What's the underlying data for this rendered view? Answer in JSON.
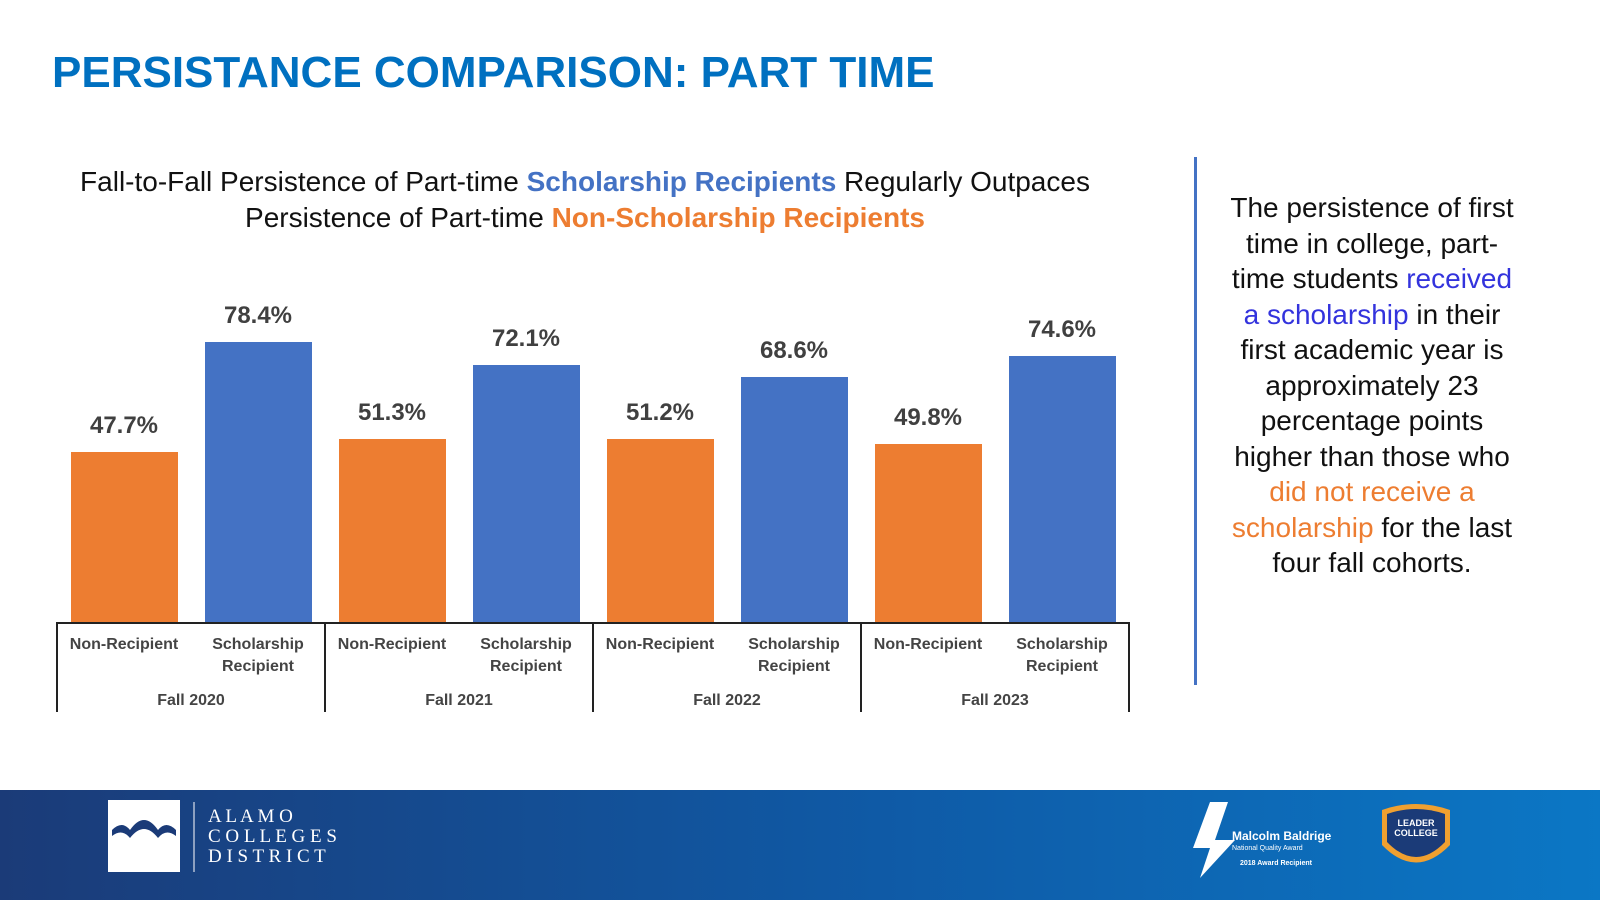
{
  "chart_data": {
    "type": "bar",
    "title": "PERSISTANCE COMPARISON: PART TIME",
    "subtitle_parts": [
      "Fall-to-Fall Persistence of Part-time",
      "Scholarship Recipients",
      "Regularly Outpaces",
      "Persistence of Part-time",
      "Non-Scholarship Recipients"
    ],
    "categories": [
      "Fall 2020",
      "Fall 2021",
      "Fall 2022",
      "Fall 2023"
    ],
    "series": [
      {
        "name": "Non-Recipient",
        "color": "#ed7d31",
        "values": [
          47.7,
          51.3,
          51.2,
          49.8
        ],
        "value_labels": [
          "47.7%",
          "51.3%",
          "51.2%",
          "49.8%"
        ]
      },
      {
        "name": "Scholarship Recipient",
        "color": "#4472c4",
        "values": [
          78.4,
          72.1,
          68.6,
          74.6
        ],
        "value_labels": [
          "78.4%",
          "72.1%",
          "68.6%",
          "74.6%"
        ]
      }
    ],
    "ylim": [
      0,
      100
    ]
  },
  "side_note": {
    "parts": [
      "The persistence of first time in college, part-time students",
      "received a scholarship",
      "in their first academic year is approximately 23 percentage points higher than those who",
      "did not receive a scholarship",
      "for the last four fall cohorts."
    ]
  },
  "footer": {
    "logo_lines": [
      "A L A M O",
      "C O L L E G E S",
      "D I S T R I C T"
    ],
    "baldrige": [
      "Malcolm Baldrige",
      "National Quality Award",
      "2018 Award Recipient"
    ],
    "badge": [
      "LEADER",
      "COLLEGE"
    ]
  }
}
